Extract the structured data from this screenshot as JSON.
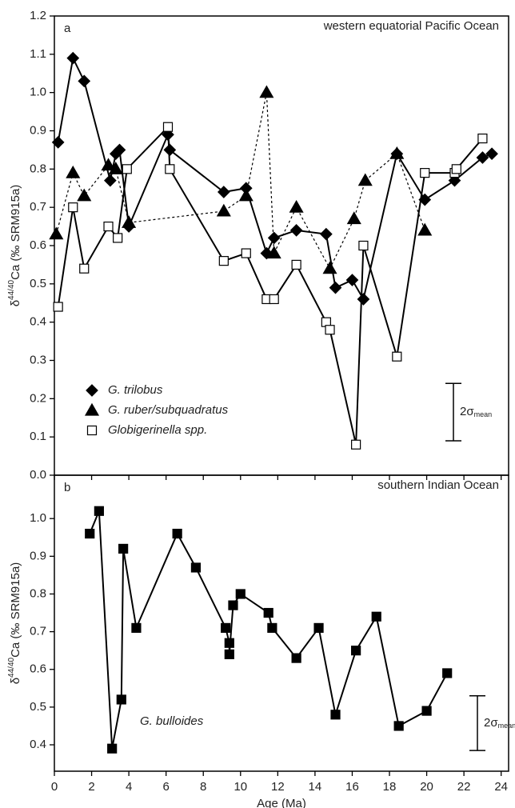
{
  "chart_data": [
    {
      "type": "line",
      "panel_label": "a",
      "title": "western equatorial Pacific Ocean",
      "y_label": {
        "prefix": "δ",
        "sup": "44/40",
        "rest": "Ca (‰ SRM915a)"
      },
      "xlim": [
        0,
        24.4
      ],
      "xticks": [
        0,
        2,
        4,
        6,
        8,
        10,
        12,
        14,
        16,
        18,
        20,
        22,
        24
      ],
      "ylim": [
        0,
        1.2
      ],
      "yticks": [
        {
          "value": 0,
          "label": "0.0"
        },
        0.1,
        0.2,
        0.3,
        0.4,
        0.5,
        0.6,
        0.7,
        0.8,
        0.9,
        {
          "value": 1,
          "label": "1.0"
        },
        1.1,
        1.2
      ],
      "series": [
        {
          "name": "G. trilobus",
          "color": "#000000",
          "marker": "diamond",
          "fill": "#000000",
          "line_style": "solid",
          "x": [
            0.2,
            1.0,
            1.6,
            3.0,
            3.3,
            3.5,
            4.0,
            6.1,
            6.2,
            9.1,
            10.3,
            11.4,
            11.8,
            13.0,
            14.6,
            15.1,
            16.0,
            16.6,
            18.4,
            19.9,
            21.5,
            23.0,
            23.5
          ],
          "values": [
            0.87,
            1.09,
            1.03,
            0.77,
            0.84,
            0.85,
            0.65,
            0.89,
            0.85,
            0.74,
            0.75,
            0.58,
            0.62,
            0.64,
            0.63,
            0.49,
            0.51,
            0.46,
            0.84,
            0.72,
            0.77,
            0.83,
            0.84
          ]
        },
        {
          "name": "G. ruber/subquadratus",
          "color": "#000000",
          "marker": "triangle",
          "fill": "#000000",
          "line_style": "dotted",
          "x": [
            0.1,
            1.0,
            1.6,
            2.9,
            3.3,
            4.0,
            9.1,
            10.3,
            11.4,
            11.8,
            13.0,
            14.8,
            16.1,
            16.7,
            18.4,
            19.9
          ],
          "values": [
            0.63,
            0.79,
            0.73,
            0.81,
            0.8,
            0.66,
            0.69,
            0.73,
            1.0,
            0.58,
            0.7,
            0.54,
            0.67,
            0.77,
            0.84,
            0.64
          ]
        },
        {
          "name": "Globigerinella spp.",
          "color": "#000000",
          "marker": "square",
          "fill": "#ffffff",
          "line_style": "solid",
          "x": [
            0.2,
            1.0,
            1.6,
            2.9,
            3.4,
            3.9,
            6.1,
            6.2,
            9.1,
            10.3,
            11.4,
            11.8,
            13.0,
            14.6,
            14.8,
            16.2,
            16.6,
            18.4,
            19.9,
            21.5,
            21.6,
            23.0
          ],
          "values": [
            0.44,
            0.7,
            0.54,
            0.65,
            0.62,
            0.8,
            0.91,
            0.8,
            0.56,
            0.58,
            0.46,
            0.46,
            0.55,
            0.4,
            0.38,
            0.08,
            0.6,
            0.31,
            0.79,
            0.79,
            0.8,
            0.88
          ]
        }
      ],
      "error_bar": {
        "label": "2σ",
        "sub": "mean",
        "low": 0.09,
        "high": 0.24
      }
    },
    {
      "type": "line",
      "panel_label": "b",
      "title": "southern Indian Ocean",
      "y_label": {
        "prefix": "δ",
        "sup": "44/40",
        "rest": "Ca (‰ SRM915a)"
      },
      "x_label": "Age (Ma)",
      "xlim": [
        0,
        24.4
      ],
      "xticks": [
        0,
        2,
        4,
        6,
        8,
        10,
        12,
        14,
        16,
        18,
        20,
        22,
        24
      ],
      "ylim": [
        0.33,
        1.115
      ],
      "yticks": [
        0.4,
        0.5,
        0.6,
        0.7,
        0.8,
        0.9,
        {
          "value": 1,
          "label": "1.0"
        }
      ],
      "series": [
        {
          "name": "G. bulloides",
          "color": "#000000",
          "marker": "square",
          "fill": "#000000",
          "line_style": "solid",
          "x": [
            1.9,
            2.4,
            3.1,
            3.6,
            3.7,
            4.4,
            6.6,
            7.6,
            9.2,
            9.4,
            9.4,
            9.6,
            10.0,
            11.5,
            11.7,
            13.0,
            14.2,
            15.1,
            16.2,
            17.3,
            18.5,
            20.0,
            21.1
          ],
          "values": [
            0.96,
            1.02,
            0.39,
            0.52,
            0.92,
            0.71,
            0.96,
            0.87,
            0.71,
            0.67,
            0.64,
            0.77,
            0.8,
            0.75,
            0.71,
            0.63,
            0.71,
            0.48,
            0.65,
            0.74,
            0.45,
            0.49,
            0.59
          ]
        }
      ],
      "error_bar": {
        "label": "2σ",
        "sub": "mean",
        "low": 0.385,
        "high": 0.53
      }
    }
  ]
}
